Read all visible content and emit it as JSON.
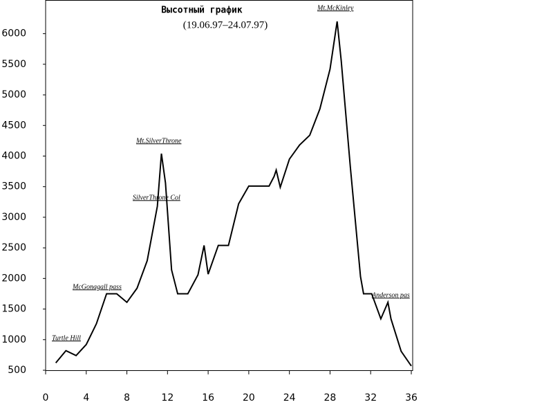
{
  "chart_data": {
    "type": "line",
    "title": "Высотный график",
    "subtitle": "(19.06.97–24.07.97)",
    "x": [
      1,
      2,
      3,
      4,
      5,
      6,
      7,
      8,
      9,
      10,
      11,
      11.4,
      11.8,
      12.4,
      13,
      14,
      15,
      15.6,
      16,
      17,
      18,
      19,
      20,
      21,
      22,
      22.5,
      22.7,
      23.1,
      24,
      25,
      26,
      27,
      28,
      28.7,
      29.1,
      30,
      31,
      31.3,
      32.1,
      33,
      33.7,
      34,
      35,
      36
    ],
    "y": [
      620,
      820,
      740,
      920,
      1260,
      1750,
      1750,
      1610,
      1840,
      2290,
      3180,
      4040,
      3560,
      2140,
      1750,
      1750,
      2060,
      2540,
      2070,
      2540,
      2540,
      3220,
      3510,
      3510,
      3510,
      3670,
      3770,
      3490,
      3950,
      4180,
      4340,
      4770,
      5420,
      6200,
      5560,
      3820,
      2030,
      1750,
      1750,
      1340,
      1610,
      1340,
      810,
      570
    ],
    "color": "#000000",
    "xlim": [
      0,
      36
    ],
    "ylim": [
      500,
      6550
    ],
    "xticks": [
      0,
      4,
      8,
      12,
      16,
      20,
      24,
      28,
      32,
      36
    ],
    "yticks": [
      500,
      1000,
      1500,
      2000,
      2500,
      3000,
      3500,
      4000,
      4500,
      5000,
      5500,
      6000
    ],
    "grid": false,
    "annotations": [
      "Turtle Hill",
      "McGonagall pass",
      "Mt.SilverThrone",
      "SilverThrone Col",
      "Mt.McKinley",
      "Anderson pas"
    ]
  }
}
